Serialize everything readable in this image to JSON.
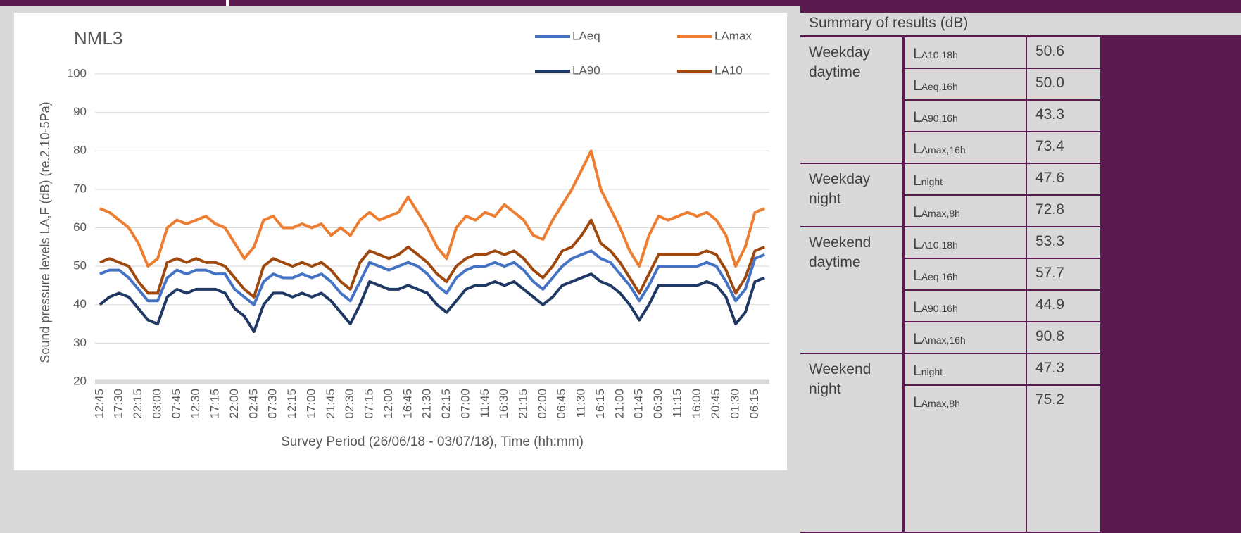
{
  "chart_data": {
    "type": "line",
    "title": "NML3",
    "y_label": "Sound pressure levels  LA,F (dB) (re.2.10-5Pa)",
    "x_label": "Survey Period (26/06/18 -  03/07/18), Time (hh:mm)",
    "categories": [
      "12:45",
      null,
      "17:30",
      null,
      "22:15",
      null,
      "03:00",
      null,
      "07:45",
      null,
      "12:30",
      null,
      "17:15",
      null,
      "22:00",
      null,
      "02:45",
      null,
      "07:30",
      null,
      "12:15",
      null,
      "17:00",
      null,
      "21:45",
      null,
      "02:30",
      null,
      "07:15",
      null,
      "12:00",
      null,
      "16:45",
      null,
      "21:30",
      null,
      "02:15",
      null,
      "07:00",
      null,
      "11:45",
      null,
      "16:30",
      null,
      "21:15",
      null,
      "02:00",
      null,
      "06:45",
      null,
      "11:30",
      null,
      "16:15",
      null,
      "21:00",
      null,
      "01:45",
      null,
      "06:30",
      null,
      "11:15",
      null,
      "16:00",
      null,
      "20:45",
      null,
      "01:30",
      null,
      "06:15",
      null
    ],
    "series": [
      {
        "name": "LAeq",
        "color": "#4472c4",
        "values": [
          48,
          49,
          49,
          47,
          44,
          41,
          41,
          47,
          49,
          48,
          49,
          49,
          48,
          48,
          44,
          42,
          40,
          46,
          48,
          47,
          47,
          48,
          47,
          48,
          46,
          43,
          41,
          46,
          51,
          50,
          49,
          50,
          51,
          50,
          48,
          45,
          43,
          47,
          49,
          50,
          50,
          51,
          50,
          51,
          49,
          46,
          44,
          47,
          50,
          52,
          53,
          54,
          52,
          51,
          48,
          45,
          41,
          45,
          50,
          50,
          50,
          50,
          50,
          51,
          50,
          46,
          41,
          44,
          52,
          53
        ]
      },
      {
        "name": "LAmax",
        "color": "#ed7d31",
        "values": [
          65,
          64,
          62,
          60,
          56,
          50,
          52,
          60,
          62,
          61,
          62,
          63,
          61,
          60,
          56,
          52,
          55,
          62,
          63,
          60,
          60,
          61,
          60,
          61,
          58,
          60,
          58,
          62,
          64,
          62,
          63,
          64,
          68,
          64,
          60,
          55,
          52,
          60,
          63,
          62,
          64,
          63,
          66,
          64,
          62,
          58,
          57,
          62,
          66,
          70,
          75,
          80,
          70,
          65,
          60,
          54,
          50,
          58,
          63,
          62,
          63,
          64,
          63,
          64,
          62,
          58,
          50,
          55,
          64,
          65
        ]
      },
      {
        "name": "LA90",
        "color": "#203864",
        "values": [
          40,
          42,
          43,
          42,
          39,
          36,
          35,
          42,
          44,
          43,
          44,
          44,
          44,
          43,
          39,
          37,
          33,
          40,
          43,
          43,
          42,
          43,
          42,
          43,
          41,
          38,
          35,
          40,
          46,
          45,
          44,
          44,
          45,
          44,
          43,
          40,
          38,
          41,
          44,
          45,
          45,
          46,
          45,
          46,
          44,
          42,
          40,
          42,
          45,
          46,
          47,
          48,
          46,
          45,
          43,
          40,
          36,
          40,
          45,
          45,
          45,
          45,
          45,
          46,
          45,
          42,
          35,
          38,
          46,
          47
        ]
      },
      {
        "name": "LA10",
        "color": "#9e480e",
        "values": [
          51,
          52,
          51,
          50,
          46,
          43,
          43,
          51,
          52,
          51,
          52,
          51,
          51,
          50,
          47,
          44,
          42,
          50,
          52,
          51,
          50,
          51,
          50,
          51,
          49,
          46,
          44,
          51,
          54,
          53,
          52,
          53,
          55,
          53,
          51,
          48,
          46,
          50,
          52,
          53,
          53,
          54,
          53,
          54,
          52,
          49,
          47,
          50,
          54,
          55,
          58,
          62,
          56,
          54,
          51,
          47,
          43,
          48,
          53,
          53,
          53,
          53,
          53,
          54,
          53,
          49,
          43,
          47,
          54,
          55
        ]
      }
    ],
    "ylim": [
      20,
      100
    ],
    "yticks": [
      20,
      30,
      40,
      50,
      60,
      70,
      80,
      90,
      100
    ],
    "grid": true,
    "legend": "top-right"
  },
  "table": {
    "title": "Summary of results (dB)",
    "groups": [
      {
        "period": "Weekday daytime",
        "rows": [
          {
            "label": "L",
            "sub": "A10,18h",
            "value": "50.6"
          },
          {
            "label": "L",
            "sub": "Aeq,16h",
            "value": "50.0"
          },
          {
            "label": "L",
            "sub": "A90,16h",
            "value": "43.3"
          },
          {
            "label": "L",
            "sub": "Amax,16h",
            "value": "73.4"
          }
        ]
      },
      {
        "period": "Weekday night",
        "rows": [
          {
            "label": "L",
            "sub": "night",
            "value": "47.6"
          },
          {
            "label": "L",
            "sub": "Amax,8h",
            "value": "72.8"
          }
        ]
      },
      {
        "period": "Weekend daytime",
        "rows": [
          {
            "label": "L",
            "sub": "A10,18h",
            "value": "53.3"
          },
          {
            "label": "L",
            "sub": "Aeq,16h",
            "value": "57.7"
          },
          {
            "label": "L",
            "sub": "A90,16h",
            "value": "44.9"
          },
          {
            "label": "L",
            "sub": "Amax,16h",
            "value": "90.8"
          }
        ]
      },
      {
        "period": "Weekend night",
        "rows": [
          {
            "label": "L",
            "sub": "night",
            "value": "47.3"
          },
          {
            "label": "L",
            "sub": "Amax,8h",
            "value": "75.2"
          }
        ]
      }
    ]
  }
}
